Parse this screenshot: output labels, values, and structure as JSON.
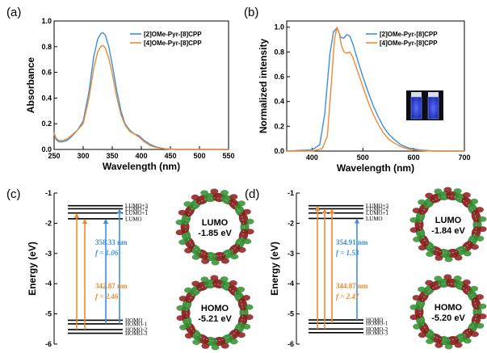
{
  "colors": {
    "blue": "#3a8fe0",
    "orange": "#f0892e",
    "orb_green": "#2f8f2f",
    "orb_red": "#8b1a1a"
  },
  "chart_data": [
    {
      "panel": "(a)",
      "type": "line",
      "xlabel": "Wavelength (nm)",
      "ylabel": "Absorbance",
      "xlim": [
        250,
        550
      ],
      "ylim": [
        0,
        1.0
      ],
      "xticks": [
        250,
        300,
        350,
        400,
        450,
        500,
        550
      ],
      "yticks": [
        0.0,
        0.2,
        0.4,
        0.6,
        0.8,
        1.0
      ],
      "legend_position": "top-right",
      "series": [
        {
          "name": "[2]OMe-Pyr-[8]CPP",
          "color": "#3a8fe0",
          "x": [
            250,
            253,
            258,
            265,
            272,
            280,
            290,
            300,
            310,
            318,
            325,
            330,
            334,
            338,
            344,
            350,
            358,
            365,
            372,
            380,
            388,
            395,
            405,
            415,
            425,
            440,
            460,
            500,
            550
          ],
          "y": [
            0.12,
            0.08,
            0.06,
            0.06,
            0.07,
            0.1,
            0.15,
            0.22,
            0.45,
            0.72,
            0.86,
            0.9,
            0.91,
            0.89,
            0.8,
            0.66,
            0.45,
            0.3,
            0.2,
            0.15,
            0.12,
            0.11,
            0.07,
            0.04,
            0.02,
            0.005,
            0.0,
            0.0,
            0.0
          ]
        },
        {
          "name": "[4]OMe-Pyr-[8]CPP",
          "color": "#f0892e",
          "x": [
            250,
            253,
            258,
            265,
            272,
            280,
            290,
            300,
            310,
            318,
            325,
            330,
            334,
            338,
            344,
            350,
            358,
            365,
            372,
            380,
            388,
            395,
            405,
            415,
            425,
            440,
            460,
            500,
            550
          ],
          "y": [
            0.13,
            0.09,
            0.07,
            0.07,
            0.08,
            0.11,
            0.15,
            0.2,
            0.4,
            0.63,
            0.76,
            0.8,
            0.81,
            0.79,
            0.71,
            0.59,
            0.4,
            0.27,
            0.19,
            0.14,
            0.12,
            0.1,
            0.06,
            0.03,
            0.015,
            0.005,
            0.0,
            0.0,
            0.0
          ]
        }
      ]
    },
    {
      "panel": "(b)",
      "type": "line",
      "xlabel": "Wavelength (nm)",
      "ylabel": "Normalized intensity",
      "xlim": [
        350,
        700
      ],
      "ylim": [
        0,
        1.05
      ],
      "xticks": [
        400,
        500,
        600,
        700
      ],
      "yticks": [
        0.0,
        0.2,
        0.4,
        0.6,
        0.8,
        1.0
      ],
      "legend_position": "top-right",
      "series": [
        {
          "name": "[2]OMe-Pyr-[8]CPP",
          "color": "#3a8fe0",
          "x": [
            350,
            400,
            415,
            425,
            435,
            442,
            448,
            452,
            456,
            462,
            468,
            474,
            480,
            490,
            500,
            510,
            520,
            530,
            540,
            550,
            560,
            575,
            590,
            610,
            640,
            700
          ],
          "y": [
            0.0,
            0.01,
            0.05,
            0.3,
            0.78,
            0.96,
            0.99,
            0.97,
            0.92,
            0.91,
            0.94,
            0.93,
            0.87,
            0.73,
            0.6,
            0.48,
            0.37,
            0.28,
            0.2,
            0.14,
            0.1,
            0.05,
            0.025,
            0.01,
            0.0,
            0.0
          ]
        },
        {
          "name": "[4]OMe-Pyr-[8]CPP",
          "color": "#f0892e",
          "x": [
            350,
            400,
            420,
            430,
            438,
            444,
            449,
            453,
            458,
            463,
            468,
            474,
            480,
            490,
            500,
            510,
            520,
            530,
            540,
            550,
            560,
            575,
            590,
            610,
            640,
            700
          ],
          "y": [
            0.0,
            0.0,
            0.02,
            0.12,
            0.55,
            0.9,
            1.0,
            0.96,
            0.85,
            0.8,
            0.79,
            0.8,
            0.76,
            0.64,
            0.52,
            0.4,
            0.3,
            0.22,
            0.15,
            0.1,
            0.07,
            0.035,
            0.015,
            0.005,
            0.0,
            0.0
          ]
        }
      ],
      "inset": "photo of two cuvettes with blue fluorescence"
    },
    {
      "panel": "(c)",
      "type": "energy-diagram",
      "ylabel": "Energy (eV)",
      "ylim": [
        -6,
        -1
      ],
      "yticks": [
        -1,
        -2,
        -3,
        -4,
        -5,
        -6
      ],
      "levels": [
        {
          "label": "LUMO+3",
          "energy": -1.42
        },
        {
          "label": "LUMO+2",
          "energy": -1.52
        },
        {
          "label": "LUMO+1",
          "energy": -1.66
        },
        {
          "label": "LUMO",
          "energy": -1.85
        },
        {
          "label": "HOMO",
          "energy": -5.21
        },
        {
          "label": "HOMO-1",
          "energy": -5.33
        },
        {
          "label": "HOMO-2",
          "energy": -5.52
        },
        {
          "label": "HOMO-3",
          "energy": -5.64
        }
      ],
      "transitions": [
        {
          "from": "HOMO-2",
          "to": "LUMO+1",
          "color": "orange"
        },
        {
          "from": "HOMO-2",
          "to": "LUMO",
          "color": "orange"
        },
        {
          "from": "HOMO-1",
          "to": "LUMO",
          "color": "blue"
        },
        {
          "from": "HOMO-1",
          "to": "LUMO+2",
          "color": "blue"
        }
      ],
      "annotations": [
        {
          "wavelength": "358.33 nm",
          "f": "f = 1.06",
          "color": "blue"
        },
        {
          "wavelength": "342.87 nm",
          "f": "f = 2.46",
          "color": "orange"
        }
      ],
      "orbitals": [
        {
          "name": "LUMO",
          "energy": "-1.85 eV"
        },
        {
          "name": "HOMO",
          "energy": "-5.21 eV"
        }
      ]
    },
    {
      "panel": "(d)",
      "type": "energy-diagram",
      "ylabel": "Energy (eV)",
      "ylim": [
        -6,
        -1
      ],
      "yticks": [
        -1,
        -2,
        -3,
        -4,
        -5,
        -6
      ],
      "levels": [
        {
          "label": "LUMO+3",
          "energy": -1.42
        },
        {
          "label": "LUMO+2",
          "energy": -1.52
        },
        {
          "label": "LUMO+1",
          "energy": -1.66
        },
        {
          "label": "LUMO",
          "energy": -1.84
        },
        {
          "label": "HOMO",
          "energy": -5.2
        },
        {
          "label": "HOMO-1",
          "energy": -5.31
        },
        {
          "label": "HOMO-2",
          "energy": -5.5
        },
        {
          "label": "HOMO-3",
          "energy": -5.62
        }
      ],
      "transitions": [
        {
          "from": "HOMO-2",
          "to": "LUMO+3",
          "color": "orange"
        },
        {
          "from": "HOMO-2",
          "to": "LUMO+2",
          "color": "orange"
        },
        {
          "from": "HOMO-1",
          "to": "LUMO+2",
          "color": "orange"
        },
        {
          "from": "HOMO",
          "to": "LUMO",
          "color": "blue"
        }
      ],
      "annotations": [
        {
          "wavelength": "354.91 nm",
          "f": "f = 1.53",
          "color": "blue"
        },
        {
          "wavelength": "344.87 nm",
          "f": "f = 2.47",
          "color": "orange"
        }
      ],
      "orbitals": [
        {
          "name": "LUMO",
          "energy": "-1.84 eV"
        },
        {
          "name": "HOMO",
          "energy": "-5.20 eV"
        }
      ]
    }
  ]
}
